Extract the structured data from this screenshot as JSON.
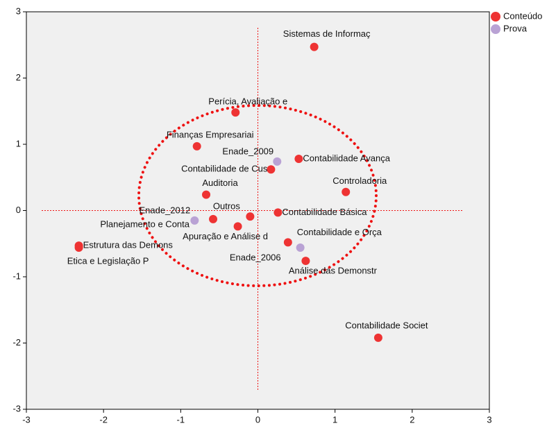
{
  "chart_data": {
    "type": "scatter",
    "xlim": [
      -3,
      3
    ],
    "ylim": [
      -3,
      3
    ],
    "xticks": [
      -3,
      -2,
      -1,
      0,
      1,
      2,
      3
    ],
    "yticks": [
      -3,
      -2,
      -1,
      0,
      1,
      2,
      3
    ],
    "series": [
      {
        "name": "Conteúdo",
        "color": "#ee3333",
        "x": [
          0.73,
          -0.29,
          -0.79,
          0.53,
          0.17,
          1.14,
          -0.67,
          0.26,
          -0.1,
          -0.58,
          -0.26,
          0.39,
          -2.32,
          -2.32,
          0.62,
          1.56
        ],
        "values": [
          2.47,
          1.48,
          0.97,
          0.78,
          0.62,
          0.28,
          0.24,
          -0.03,
          -0.09,
          -0.13,
          -0.24,
          -0.48,
          -0.53,
          -0.56,
          -0.76,
          -1.92
        ],
        "labels": [
          "Sistemas de Informaç",
          "Perícia, Avaliação e",
          "Finanças Empresariai",
          "Contabilidade Avança",
          "Contabilidade de Cus",
          "Controladoria",
          "Auditoria",
          "Contabilidade Básica",
          "Outros",
          "Planejamento e Conta",
          "Apuração e Análise d",
          "Contabilidade e Orça",
          "Estrutura das Demons",
          "Etica e Legislação P",
          "Análise das Demonstr",
          "Contabilidade Societ"
        ]
      },
      {
        "name": "Prova",
        "color": "#b9a2d4",
        "x": [
          0.25,
          -0.82,
          0.55
        ],
        "values": [
          0.74,
          -0.15,
          -0.56
        ],
        "labels": [
          "Enade_2009",
          "Enade_2012",
          "Enade_2006"
        ]
      }
    ]
  }
}
